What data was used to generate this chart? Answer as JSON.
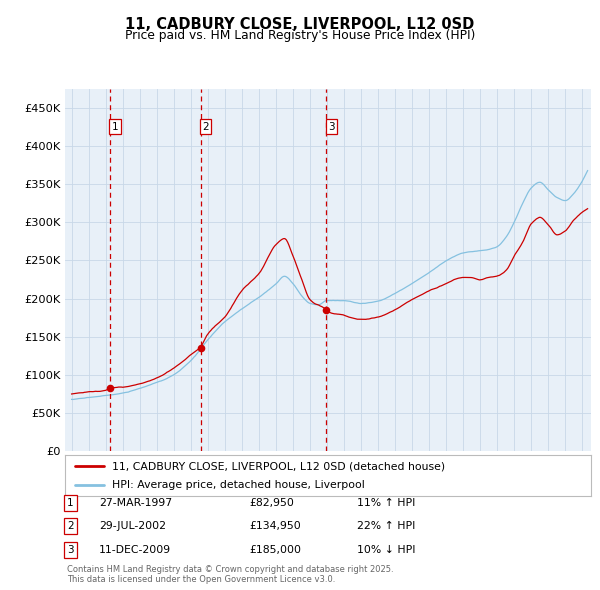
{
  "title": "11, CADBURY CLOSE, LIVERPOOL, L12 0SD",
  "subtitle": "Price paid vs. HM Land Registry's House Price Index (HPI)",
  "legend_line1": "11, CADBURY CLOSE, LIVERPOOL, L12 0SD (detached house)",
  "legend_line2": "HPI: Average price, detached house, Liverpool",
  "footer_line1": "Contains HM Land Registry data © Crown copyright and database right 2025.",
  "footer_line2": "This data is licensed under the Open Government Licence v3.0.",
  "transactions": [
    {
      "num": 1,
      "date": "27-MAR-1997",
      "price": 82950,
      "pct": "11%",
      "dir": "↑",
      "year_x": 1997.23
    },
    {
      "num": 2,
      "date": "29-JUL-2002",
      "price": 134950,
      "pct": "22%",
      "dir": "↑",
      "year_x": 2002.57
    },
    {
      "num": 3,
      "date": "11-DEC-2009",
      "price": 185000,
      "pct": "10%",
      "dir": "↓",
      "year_x": 2009.95
    }
  ],
  "sale_marker_color": "#cc0000",
  "hpi_line_color": "#85c1e0",
  "price_line_color": "#cc0000",
  "vline_color": "#cc0000",
  "grid_color": "#c8d8e8",
  "bg_color": "#e8f0f8",
  "ylim": [
    0,
    475000
  ],
  "yticks": [
    0,
    50000,
    100000,
    150000,
    200000,
    250000,
    300000,
    350000,
    400000,
    450000
  ],
  "xlim_start": 1994.6,
  "xlim_end": 2025.5
}
